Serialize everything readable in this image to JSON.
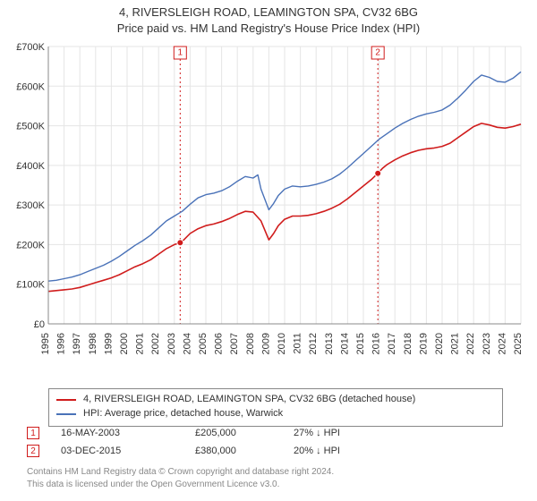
{
  "title_line1": "4, RIVERSLEIGH ROAD, LEAMINGTON SPA, CV32 6BG",
  "title_line2": "Price paid vs. HM Land Registry's House Price Index (HPI)",
  "chart": {
    "type": "line",
    "background_color": "#ffffff",
    "plot_border_color": "#888888",
    "grid_color": "#e5e5e5",
    "x_start_year": 1995,
    "x_end_year": 2025,
    "x_ticks": [
      1995,
      1996,
      1997,
      1998,
      1999,
      2000,
      2001,
      2002,
      2003,
      2004,
      2005,
      2006,
      2007,
      2008,
      2009,
      2010,
      2011,
      2012,
      2013,
      2014,
      2015,
      2016,
      2017,
      2018,
      2019,
      2020,
      2021,
      2022,
      2023,
      2024,
      2025
    ],
    "y_min": 0,
    "y_max": 700000,
    "y_tick_step": 100000,
    "y_tick_labels": [
      "£0",
      "£100K",
      "£200K",
      "£300K",
      "£400K",
      "£500K",
      "£600K",
      "£700K"
    ],
    "axis_label_fontsize": 11,
    "title_fontsize": 13,
    "series": [
      {
        "name": "property",
        "color": "#d01c1c",
        "width": 1.6,
        "legend_label": "4, RIVERSLEIGH ROAD, LEAMINGTON SPA, CV32 6BG (detached house)",
        "data": [
          [
            1995.0,
            82000
          ],
          [
            1995.5,
            84000
          ],
          [
            1996.0,
            86000
          ],
          [
            1996.5,
            88000
          ],
          [
            1997.0,
            92000
          ],
          [
            1997.5,
            98000
          ],
          [
            1998.0,
            104000
          ],
          [
            1998.5,
            110000
          ],
          [
            1999.0,
            116000
          ],
          [
            1999.5,
            124000
          ],
          [
            2000.0,
            134000
          ],
          [
            2000.5,
            144000
          ],
          [
            2001.0,
            152000
          ],
          [
            2001.5,
            162000
          ],
          [
            2002.0,
            176000
          ],
          [
            2002.5,
            190000
          ],
          [
            2003.0,
            200000
          ],
          [
            2003.37,
            205000
          ],
          [
            2003.6,
            212000
          ],
          [
            2004.0,
            228000
          ],
          [
            2004.5,
            240000
          ],
          [
            2005.0,
            248000
          ],
          [
            2005.5,
            252000
          ],
          [
            2006.0,
            258000
          ],
          [
            2006.5,
            266000
          ],
          [
            2007.0,
            276000
          ],
          [
            2007.5,
            284000
          ],
          [
            2008.0,
            282000
          ],
          [
            2008.5,
            260000
          ],
          [
            2009.0,
            212000
          ],
          [
            2009.3,
            228000
          ],
          [
            2009.6,
            248000
          ],
          [
            2010.0,
            264000
          ],
          [
            2010.5,
            272000
          ],
          [
            2011.0,
            272000
          ],
          [
            2011.5,
            274000
          ],
          [
            2012.0,
            278000
          ],
          [
            2012.5,
            284000
          ],
          [
            2013.0,
            292000
          ],
          [
            2013.5,
            302000
          ],
          [
            2014.0,
            316000
          ],
          [
            2014.5,
            332000
          ],
          [
            2015.0,
            348000
          ],
          [
            2015.5,
            364000
          ],
          [
            2015.92,
            380000
          ],
          [
            2016.2,
            392000
          ],
          [
            2016.5,
            402000
          ],
          [
            2017.0,
            414000
          ],
          [
            2017.5,
            424000
          ],
          [
            2018.0,
            432000
          ],
          [
            2018.5,
            438000
          ],
          [
            2019.0,
            442000
          ],
          [
            2019.5,
            444000
          ],
          [
            2020.0,
            448000
          ],
          [
            2020.5,
            456000
          ],
          [
            2021.0,
            470000
          ],
          [
            2021.5,
            484000
          ],
          [
            2022.0,
            498000
          ],
          [
            2022.5,
            506000
          ],
          [
            2023.0,
            502000
          ],
          [
            2023.5,
            496000
          ],
          [
            2024.0,
            494000
          ],
          [
            2024.5,
            498000
          ],
          [
            2025.0,
            504000
          ]
        ]
      },
      {
        "name": "hpi",
        "color": "#4a72b8",
        "width": 1.4,
        "legend_label": "HPI: Average price, detached house, Warwick",
        "data": [
          [
            1995.0,
            108000
          ],
          [
            1995.5,
            110000
          ],
          [
            1996.0,
            114000
          ],
          [
            1996.5,
            118000
          ],
          [
            1997.0,
            124000
          ],
          [
            1997.5,
            132000
          ],
          [
            1998.0,
            140000
          ],
          [
            1998.5,
            148000
          ],
          [
            1999.0,
            158000
          ],
          [
            1999.5,
            170000
          ],
          [
            2000.0,
            184000
          ],
          [
            2000.5,
            198000
          ],
          [
            2001.0,
            210000
          ],
          [
            2001.5,
            224000
          ],
          [
            2002.0,
            242000
          ],
          [
            2002.5,
            260000
          ],
          [
            2003.0,
            272000
          ],
          [
            2003.5,
            284000
          ],
          [
            2004.0,
            302000
          ],
          [
            2004.5,
            318000
          ],
          [
            2005.0,
            326000
          ],
          [
            2005.5,
            330000
          ],
          [
            2006.0,
            336000
          ],
          [
            2006.5,
            346000
          ],
          [
            2007.0,
            360000
          ],
          [
            2007.5,
            372000
          ],
          [
            2008.0,
            368000
          ],
          [
            2008.3,
            376000
          ],
          [
            2008.5,
            340000
          ],
          [
            2009.0,
            288000
          ],
          [
            2009.3,
            304000
          ],
          [
            2009.6,
            324000
          ],
          [
            2010.0,
            340000
          ],
          [
            2010.5,
            348000
          ],
          [
            2011.0,
            346000
          ],
          [
            2011.5,
            348000
          ],
          [
            2012.0,
            352000
          ],
          [
            2012.5,
            358000
          ],
          [
            2013.0,
            366000
          ],
          [
            2013.5,
            378000
          ],
          [
            2014.0,
            394000
          ],
          [
            2014.5,
            412000
          ],
          [
            2015.0,
            430000
          ],
          [
            2015.5,
            448000
          ],
          [
            2016.0,
            466000
          ],
          [
            2016.5,
            480000
          ],
          [
            2017.0,
            494000
          ],
          [
            2017.5,
            506000
          ],
          [
            2018.0,
            516000
          ],
          [
            2018.5,
            524000
          ],
          [
            2019.0,
            530000
          ],
          [
            2019.5,
            534000
          ],
          [
            2020.0,
            540000
          ],
          [
            2020.5,
            552000
          ],
          [
            2021.0,
            570000
          ],
          [
            2021.5,
            590000
          ],
          [
            2022.0,
            612000
          ],
          [
            2022.5,
            628000
          ],
          [
            2023.0,
            622000
          ],
          [
            2023.5,
            612000
          ],
          [
            2024.0,
            610000
          ],
          [
            2024.5,
            620000
          ],
          [
            2025.0,
            636000
          ]
        ]
      }
    ],
    "event_lines": [
      {
        "x": 2003.37,
        "color": "#d01c1c",
        "dash": "2,3",
        "label": "1"
      },
      {
        "x": 2015.92,
        "color": "#d01c1c",
        "dash": "2,3",
        "label": "2"
      }
    ],
    "sale_points": [
      {
        "x": 2003.37,
        "y": 205000,
        "color": "#d01c1c"
      },
      {
        "x": 2015.92,
        "y": 380000,
        "color": "#d01c1c"
      }
    ]
  },
  "legend_rows": [
    {
      "color": "#d01c1c",
      "label_key": "chart.series.0.legend_label"
    },
    {
      "color": "#4a72b8",
      "label_key": "chart.series.1.legend_label"
    }
  ],
  "points_table": [
    {
      "num": "1",
      "color": "#d01c1c",
      "date": "16-MAY-2003",
      "price": "£205,000",
      "diff": "27% ↓ HPI"
    },
    {
      "num": "2",
      "color": "#d01c1c",
      "date": "03-DEC-2015",
      "price": "£380,000",
      "diff": "20% ↓ HPI"
    }
  ],
  "footer_line1": "Contains HM Land Registry data © Crown copyright and database right 2024.",
  "footer_line2": "This data is licensed under the Open Government Licence v3.0."
}
